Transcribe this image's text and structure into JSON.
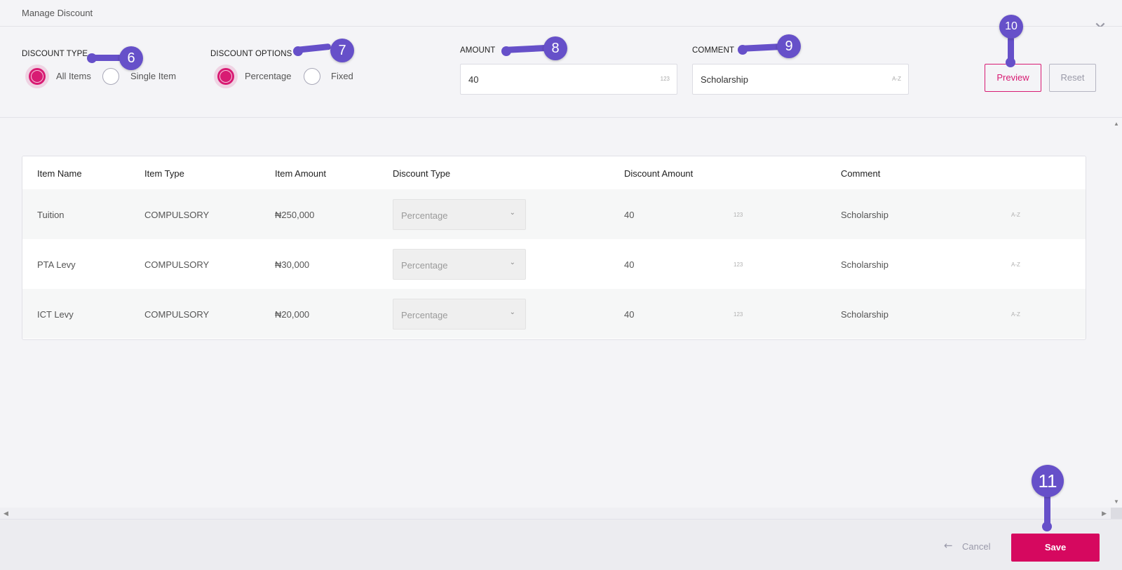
{
  "window": {
    "title": "Manage Discount",
    "close_icon": "✕"
  },
  "form": {
    "discount_type": {
      "label": "DISCOUNT TYPE",
      "options": [
        {
          "label": "All Items",
          "checked": true
        },
        {
          "label": "Single Item",
          "checked": false
        }
      ]
    },
    "discount_options": {
      "label": "DISCOUNT OPTIONS",
      "options": [
        {
          "label": "Percentage",
          "checked": true
        },
        {
          "label": "Fixed",
          "checked": false
        }
      ]
    },
    "amount": {
      "label": "AMOUNT",
      "value": "40",
      "hint": "123"
    },
    "comment": {
      "label": "COMMENT",
      "value": "Scholarship",
      "hint": "A-Z"
    },
    "preview_label": "Preview",
    "reset_label": "Reset"
  },
  "annotations": [
    "6",
    "7",
    "8",
    "9",
    "10",
    "11"
  ],
  "table": {
    "columns": [
      "Item Name",
      "Item Type",
      "Item Amount",
      "Discount Type",
      "Discount Amount",
      "Comment"
    ],
    "rows": [
      {
        "name": "Tuition",
        "type": "COMPULSORY",
        "amount": "₦250,000",
        "discount_type": "Percentage",
        "discount_amount": "40",
        "amount_hint": "123",
        "comment": "Scholarship",
        "comment_hint": "A-Z"
      },
      {
        "name": "PTA Levy",
        "type": "COMPULSORY",
        "amount": "₦30,000",
        "discount_type": "Percentage",
        "discount_amount": "40",
        "amount_hint": "123",
        "comment": "Scholarship",
        "comment_hint": "A-Z"
      },
      {
        "name": "ICT Levy",
        "type": "COMPULSORY",
        "amount": "₦20,000",
        "discount_type": "Percentage",
        "discount_amount": "40",
        "amount_hint": "123",
        "comment": "Scholarship",
        "comment_hint": "A-Z"
      }
    ]
  },
  "footer": {
    "cancel_label": "Cancel",
    "save_label": "Save"
  },
  "colors": {
    "accent": "#d81b73",
    "annotation": "#6650c9"
  }
}
